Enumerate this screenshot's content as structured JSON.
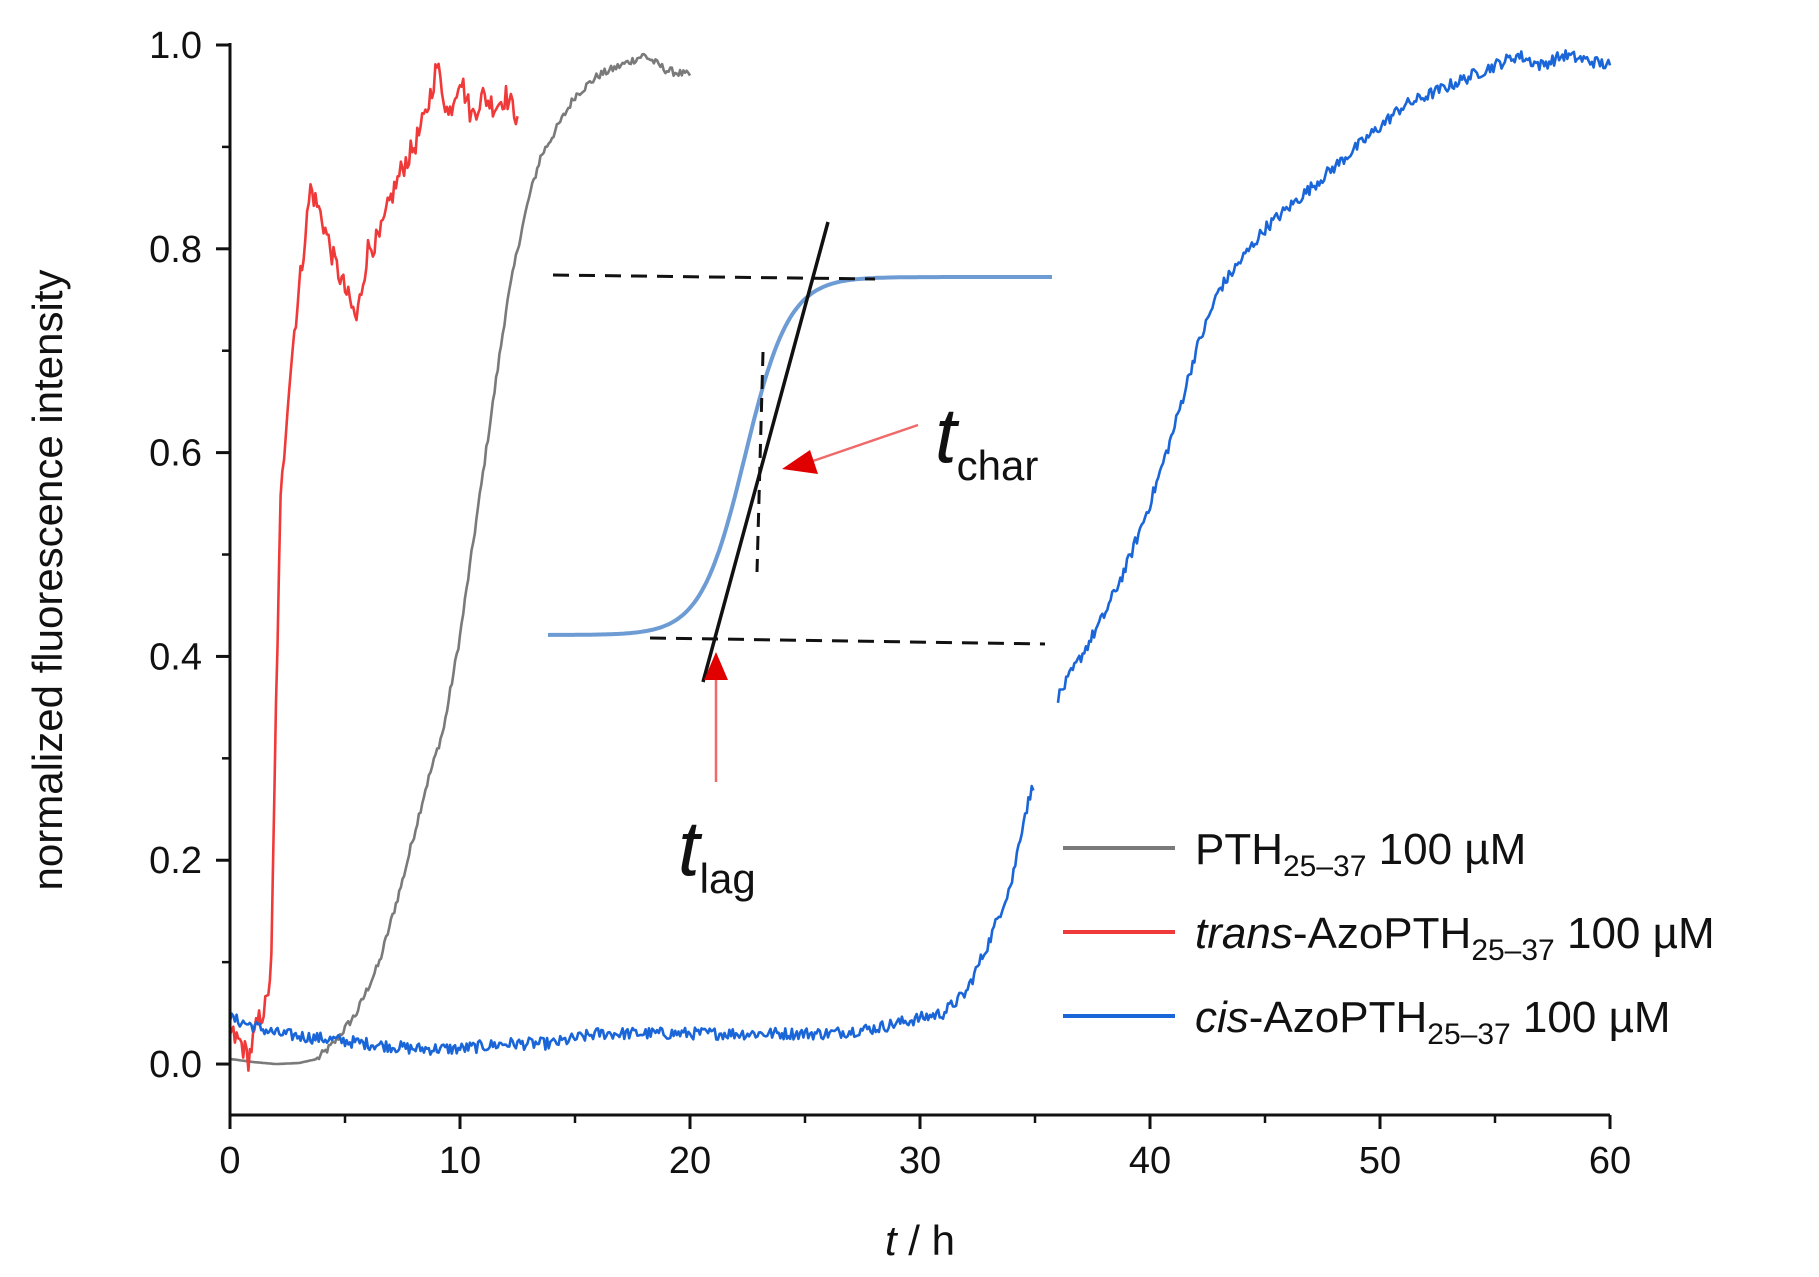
{
  "chart_data": {
    "type": "line",
    "title": "",
    "xlabel": {
      "italic": "t",
      "rest": " / h"
    },
    "ylabel": "normalized fluorescence intensity",
    "xlim": [
      0,
      60
    ],
    "ylim": [
      -0.05,
      1.0
    ],
    "xticks": [
      0,
      10,
      20,
      30,
      40,
      50,
      60
    ],
    "xtick_labels": [
      "0",
      "10",
      "20",
      "30",
      "40",
      "50",
      "60"
    ],
    "yticks": [
      0.0,
      0.2,
      0.4,
      0.6,
      0.8,
      1.0
    ],
    "ytick_labels": [
      "0.0",
      "0.2",
      "0.4",
      "0.6",
      "0.8",
      "1.0"
    ],
    "grid": false,
    "legend_position": "bottom-right",
    "series": [
      {
        "name": "PTH25–37 100 µM",
        "label_parts": {
          "italic": "",
          "pre": "PTH",
          "sub": "25–37",
          "post": " 100 µM"
        },
        "color": "#7a7a7a",
        "points": [
          [
            0,
            0.005
          ],
          [
            1,
            0.002
          ],
          [
            2,
            0.0
          ],
          [
            3,
            0.001
          ],
          [
            3.8,
            0.005
          ],
          [
            4.5,
            0.02
          ],
          [
            5.5,
            0.05
          ],
          [
            6.5,
            0.1
          ],
          [
            7.5,
            0.18
          ],
          [
            8.5,
            0.27
          ],
          [
            9.3,
            0.33
          ],
          [
            10,
            0.42
          ],
          [
            10.5,
            0.5
          ],
          [
            11,
            0.58
          ],
          [
            11.5,
            0.66
          ],
          [
            12,
            0.74
          ],
          [
            12.5,
            0.8
          ],
          [
            13,
            0.85
          ],
          [
            13.5,
            0.89
          ],
          [
            14,
            0.91
          ],
          [
            14.5,
            0.93
          ],
          [
            15,
            0.95
          ],
          [
            15.5,
            0.96
          ],
          [
            16,
            0.97
          ],
          [
            17,
            0.98
          ],
          [
            18,
            0.99
          ],
          [
            19,
            0.975
          ],
          [
            20,
            0.97
          ]
        ]
      },
      {
        "name": "trans-AzoPTH25–37 100 µM",
        "label_parts": {
          "italic": "trans",
          "pre": "-AzoPTH",
          "sub": "25–37",
          "post": " 100 µM"
        },
        "color": "#f03a3a",
        "points": [
          [
            0,
            0.03
          ],
          [
            0.5,
            0.02
          ],
          [
            0.8,
            0.005
          ],
          [
            1.2,
            0.04
          ],
          [
            1.6,
            0.06
          ],
          [
            1.8,
            0.1
          ],
          [
            2,
            0.35
          ],
          [
            2.2,
            0.55
          ],
          [
            2.5,
            0.65
          ],
          [
            2.8,
            0.72
          ],
          [
            3.2,
            0.8
          ],
          [
            3.5,
            0.86
          ],
          [
            4,
            0.83
          ],
          [
            4.5,
            0.79
          ],
          [
            5,
            0.76
          ],
          [
            5.5,
            0.73
          ],
          [
            6,
            0.8
          ],
          [
            6.5,
            0.81
          ],
          [
            7,
            0.85
          ],
          [
            7.5,
            0.88
          ],
          [
            8,
            0.9
          ],
          [
            8.5,
            0.93
          ],
          [
            9,
            0.98
          ],
          [
            9.5,
            0.93
          ],
          [
            10,
            0.97
          ],
          [
            10.5,
            0.93
          ],
          [
            11,
            0.95
          ],
          [
            11.5,
            0.94
          ],
          [
            12,
            0.95
          ],
          [
            12.5,
            0.93
          ]
        ]
      },
      {
        "name": "cis-AzoPTH25–37 100 µM",
        "label_parts": {
          "italic": "cis",
          "pre": "-AzoPTH",
          "sub": "25–37",
          "post": " 100 µM"
        },
        "color": "#1a66d9",
        "points": [
          [
            0,
            0.045
          ],
          [
            2,
            0.03
          ],
          [
            4,
            0.025
          ],
          [
            6,
            0.02
          ],
          [
            8,
            0.015
          ],
          [
            10,
            0.015
          ],
          [
            12,
            0.02
          ],
          [
            14,
            0.02
          ],
          [
            16,
            0.03
          ],
          [
            18,
            0.03
          ],
          [
            20,
            0.03
          ],
          [
            22,
            0.03
          ],
          [
            24,
            0.03
          ],
          [
            26,
            0.03
          ],
          [
            28,
            0.035
          ],
          [
            30,
            0.045
          ],
          [
            31,
            0.05
          ],
          [
            32,
            0.07
          ],
          [
            33,
            0.12
          ],
          [
            34,
            0.18
          ],
          [
            34.5,
            0.24
          ],
          [
            35,
            0.28
          ],
          [
            35.3,
            null
          ],
          [
            36,
            0.36
          ],
          [
            37,
            0.4
          ],
          [
            38,
            0.44
          ],
          [
            39,
            0.49
          ],
          [
            40,
            0.55
          ],
          [
            41,
            0.62
          ],
          [
            42,
            0.7
          ],
          [
            43,
            0.76
          ],
          [
            44,
            0.79
          ],
          [
            45,
            0.82
          ],
          [
            46,
            0.84
          ],
          [
            47,
            0.86
          ],
          [
            48,
            0.88
          ],
          [
            49,
            0.9
          ],
          [
            50,
            0.92
          ],
          [
            51,
            0.94
          ],
          [
            52,
            0.95
          ],
          [
            53,
            0.96
          ],
          [
            54,
            0.97
          ],
          [
            55,
            0.98
          ],
          [
            56,
            0.99
          ],
          [
            57,
            0.98
          ],
          [
            58,
            0.99
          ],
          [
            59,
            0.985
          ],
          [
            60,
            0.98
          ]
        ]
      }
    ],
    "inset": {
      "annotations": [
        {
          "italic": "t",
          "sub": "char"
        },
        {
          "italic": "t",
          "sub": "lag"
        }
      ]
    }
  }
}
